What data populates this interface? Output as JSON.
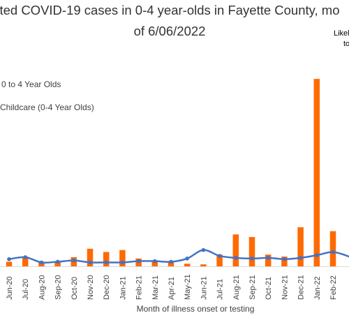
{
  "chart_data": {
    "type": "bar",
    "title_line1": "ted COVID-19 cases in 0-4 year-olds in Fayette County, mo",
    "title_line2": "of 6/06/2022",
    "annotation_line1": "Likel",
    "annotation_line2": "to",
    "xlabel": "Month of illness onset or testing",
    "ylabel": "",
    "categories": [
      "Jun-20",
      "Jul-20",
      "Aug-20",
      "Sep-20",
      "Oct-20",
      "Nov-20",
      "Dec-20",
      "Jan-21",
      "Feb-21",
      "Mar-21",
      "Apr-21",
      "May-21",
      "Jun-21",
      "Jul-21",
      "Aug-21",
      "Sep-21",
      "Oct-21",
      "Nov-21",
      "Dec-21",
      "Jan-22",
      "Feb-22"
    ],
    "ylim": [
      0,
      300
    ],
    "series": [
      {
        "name": "0 to 4 Year Olds",
        "kind": "bar",
        "color": "#FF6A00",
        "values": [
          7,
          15,
          7,
          8,
          14,
          27,
          22,
          25,
          12,
          8,
          6,
          4,
          3,
          18,
          49,
          45,
          18,
          15,
          60,
          288,
          54
        ]
      },
      {
        "name": "Childcare (0-4 Year Olds)",
        "kind": "line",
        "color": "#4472C4",
        "values": [
          11,
          14,
          6,
          7,
          9,
          6,
          6,
          6,
          8,
          8,
          7,
          12,
          25,
          16,
          13,
          12,
          13,
          11,
          13,
          17,
          22
        ]
      }
    ],
    "legend_position": "upper-left",
    "grid": false
  }
}
